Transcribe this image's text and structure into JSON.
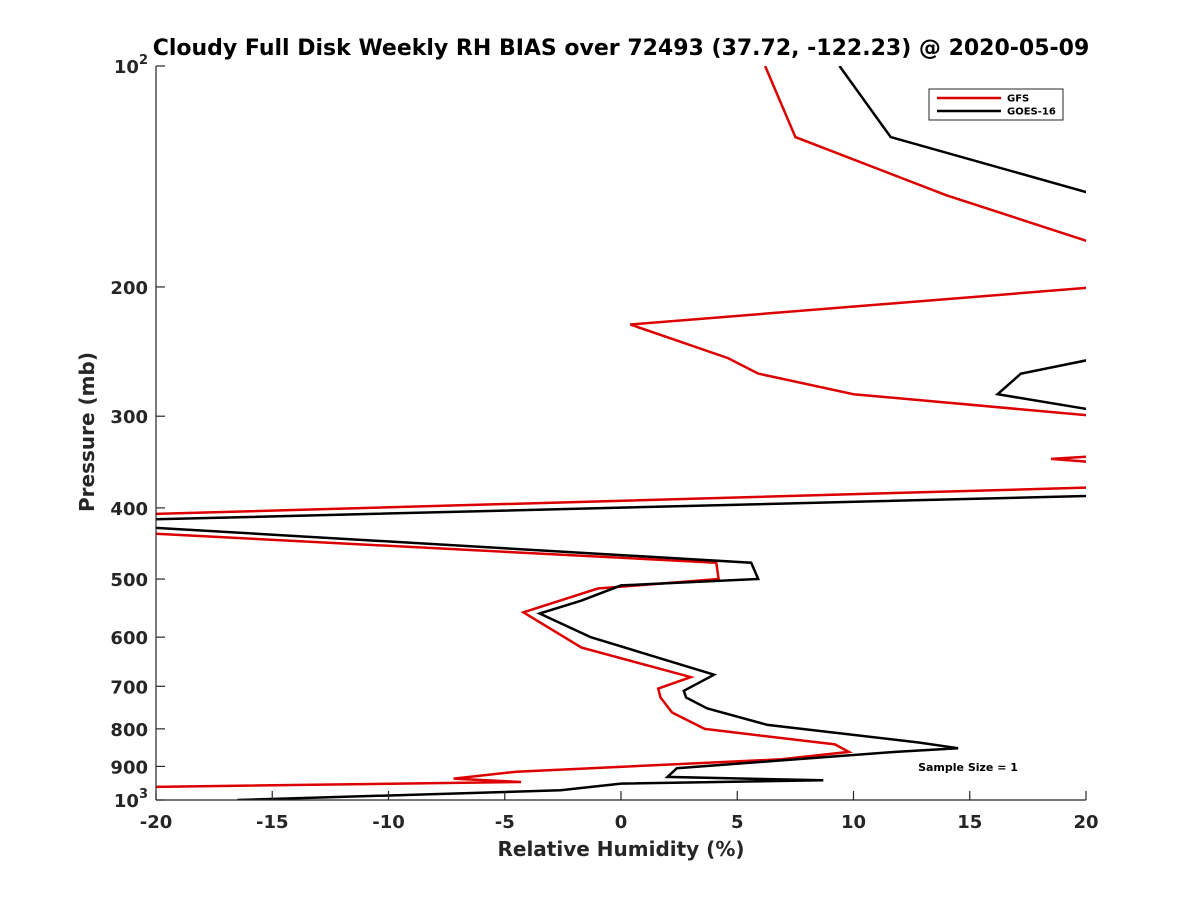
{
  "chart_data": {
    "type": "line",
    "title": "Cloudy Full Disk Weekly RH BIAS over 72493 (37.72, -122.23) @ 2020-05-09",
    "xlabel": "Relative Humidity (%)",
    "ylabel": "Pressure (mb)",
    "xlim": [
      -20,
      20
    ],
    "ylim": [
      100,
      1000
    ],
    "yscale": "log",
    "y_reversed": true,
    "grid": false,
    "legend_position": "top-right",
    "x_ticks": [
      -20,
      -15,
      -10,
      -5,
      0,
      5,
      10,
      15,
      20
    ],
    "y_ticks": [
      {
        "value": 100,
        "base": "10",
        "exp": "2"
      },
      {
        "value": 200,
        "label": "200"
      },
      {
        "value": 300,
        "label": "300"
      },
      {
        "value": 400,
        "label": "400"
      },
      {
        "value": 500,
        "label": "500"
      },
      {
        "value": 600,
        "label": "600"
      },
      {
        "value": 700,
        "label": "700"
      },
      {
        "value": 800,
        "label": "800"
      },
      {
        "value": 900,
        "label": "900"
      },
      {
        "value": 1000,
        "base": "10",
        "exp": "3"
      }
    ],
    "annotation": "Sample Size = 1",
    "series": [
      {
        "name": "GFS",
        "color": "#dd0000",
        "segments": [
          [
            [
              6.2,
              100
            ],
            [
              7.5,
              125
            ],
            [
              14.0,
              150
            ],
            [
              20.5,
              175
            ]
          ],
          [
            [
              20.5,
              200
            ],
            [
              0.4,
              225
            ],
            [
              4.6,
              250
            ],
            [
              5.9,
              262.5
            ],
            [
              10.0,
              280
            ],
            [
              20.5,
              300
            ]
          ],
          [
            [
              20.5,
              340
            ],
            [
              18.5,
              343
            ],
            [
              20.5,
              347
            ]
          ],
          [
            [
              20.5,
              375
            ],
            [
              -20.5,
              408
            ],
            [
              -20.5,
              433
            ],
            [
              4.1,
              475
            ],
            [
              4.2,
              500
            ],
            [
              -1.0,
              515
            ],
            [
              -4.2,
              555
            ],
            [
              -1.7,
              620
            ],
            [
              3.0,
              680
            ],
            [
              1.6,
              705
            ],
            [
              1.7,
              725
            ],
            [
              2.2,
              760
            ],
            [
              3.6,
              800
            ],
            [
              9.2,
              840
            ],
            [
              9.8,
              860
            ],
            [
              6.9,
              880
            ],
            [
              -4.5,
              915
            ],
            [
              -7.2,
              935
            ],
            [
              -4.3,
              945
            ],
            [
              -20.5,
              960
            ]
          ]
        ]
      },
      {
        "name": "GOES-16",
        "color": "#000000",
        "segments": [
          [
            [
              9.4,
              100
            ],
            [
              11.6,
              125
            ],
            [
              20.5,
              150
            ]
          ],
          [
            [
              20.5,
              250
            ],
            [
              17.2,
              262.5
            ],
            [
              16.2,
              280
            ],
            [
              20.5,
              295
            ]
          ],
          [
            [
              20.5,
              385
            ],
            [
              -20.5,
              415
            ],
            [
              -20.5,
              425
            ],
            [
              5.6,
              475
            ],
            [
              5.9,
              500
            ],
            [
              0.0,
              510
            ],
            [
              -1.7,
              535
            ],
            [
              -3.5,
              557
            ],
            [
              -1.3,
              600
            ],
            [
              4.0,
              675
            ],
            [
              2.7,
              710
            ],
            [
              2.8,
              725
            ],
            [
              3.7,
              750
            ],
            [
              6.3,
              790
            ],
            [
              12.8,
              835
            ],
            [
              14.5,
              850
            ],
            [
              11.8,
              860
            ],
            [
              2.4,
              905
            ],
            [
              2.0,
              930
            ],
            [
              8.7,
              940
            ],
            [
              0.0,
              950
            ],
            [
              -2.6,
              970
            ],
            [
              -16.5,
              1000
            ]
          ]
        ]
      }
    ]
  }
}
